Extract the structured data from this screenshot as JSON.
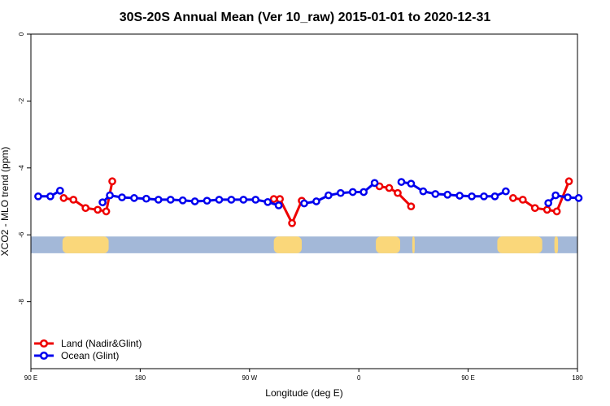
{
  "chart_data": {
    "type": "line",
    "title": "30S-20S Annual Mean (Ver 10_raw)   2015-01-01 to 2020-12-31",
    "xlabel": "Longitude (deg E)",
    "ylabel": "XCO2 - MLO trend (ppm)",
    "xlim": [
      90,
      540
    ],
    "ylim": [
      -10,
      0
    ],
    "x_ticks": [
      {
        "value": 90,
        "label": "90 E"
      },
      {
        "value": 180,
        "label": "180"
      },
      {
        "value": 270,
        "label": "90 W"
      },
      {
        "value": 360,
        "label": "0"
      },
      {
        "value": 450,
        "label": "90 E"
      },
      {
        "value": 540,
        "label": "180"
      }
    ],
    "y_ticks": [
      {
        "value": 0,
        "label": "0"
      },
      {
        "value": -2,
        "label": "-2"
      },
      {
        "value": -4,
        "label": "-4"
      },
      {
        "value": -6,
        "label": "-6"
      },
      {
        "value": -8,
        "label": "-8"
      }
    ],
    "legend_position": "bottom-left",
    "map_strip": {
      "y_range": [
        -6.55,
        -6.05
      ],
      "ocean_color": "#a3b8d8",
      "land_color": "#fad77a",
      "land_lon_ranges": [
        [
          116,
          154
        ],
        [
          290,
          313
        ],
        [
          374,
          394
        ],
        [
          404,
          406
        ],
        [
          474,
          511
        ],
        [
          521,
          524
        ]
      ]
    },
    "series": [
      {
        "name": "Land (Nadir&Glint)",
        "color": "#ee0000",
        "segments": [
          [
            [
              117,
              -4.9
            ],
            [
              125,
              -4.95
            ],
            [
              135,
              -5.2
            ],
            [
              145,
              -5.25
            ],
            [
              152,
              -5.3
            ],
            [
              157,
              -4.4
            ]
          ],
          [
            [
              290,
              -4.93
            ],
            [
              295,
              -4.93
            ],
            [
              305,
              -5.65
            ],
            [
              313,
              -4.98
            ]
          ],
          [
            [
              377,
              -4.55
            ],
            [
              385,
              -4.6
            ],
            [
              392,
              -4.75
            ],
            [
              403,
              -5.15
            ]
          ],
          [
            [
              487,
              -4.9
            ],
            [
              495,
              -4.95
            ],
            [
              505,
              -5.2
            ],
            [
              515,
              -5.25
            ],
            [
              523,
              -5.3
            ],
            [
              533,
              -4.4
            ]
          ]
        ]
      },
      {
        "name": "Ocean (Glint)",
        "color": "#0000ee",
        "segments": [
          [
            [
              96,
              -4.85
            ],
            [
              106,
              -4.85
            ],
            [
              114,
              -4.68
            ]
          ],
          [
            [
              149,
              -5.03
            ],
            [
              155,
              -4.82
            ],
            [
              165,
              -4.88
            ],
            [
              175,
              -4.9
            ],
            [
              185,
              -4.92
            ],
            [
              195,
              -4.95
            ],
            [
              205,
              -4.95
            ],
            [
              215,
              -4.97
            ],
            [
              225,
              -5.0
            ],
            [
              235,
              -4.98
            ],
            [
              245,
              -4.95
            ],
            [
              255,
              -4.95
            ],
            [
              265,
              -4.95
            ],
            [
              275,
              -4.95
            ],
            [
              285,
              -5.02
            ],
            [
              294,
              -5.12
            ]
          ],
          [
            [
              315,
              -5.06
            ],
            [
              325,
              -5.0
            ],
            [
              335,
              -4.82
            ],
            [
              345,
              -4.75
            ],
            [
              355,
              -4.72
            ],
            [
              364,
              -4.72
            ],
            [
              373,
              -4.45
            ]
          ],
          [
            [
              395,
              -4.42
            ],
            [
              403,
              -4.47
            ],
            [
              413,
              -4.7
            ],
            [
              423,
              -4.78
            ],
            [
              433,
              -4.8
            ],
            [
              443,
              -4.83
            ],
            [
              453,
              -4.85
            ],
            [
              463,
              -4.85
            ],
            [
              472,
              -4.85
            ],
            [
              481,
              -4.7
            ]
          ],
          [
            [
              516,
              -5.05
            ],
            [
              522,
              -4.82
            ],
            [
              532,
              -4.88
            ],
            [
              541,
              -4.9
            ]
          ]
        ]
      }
    ]
  }
}
